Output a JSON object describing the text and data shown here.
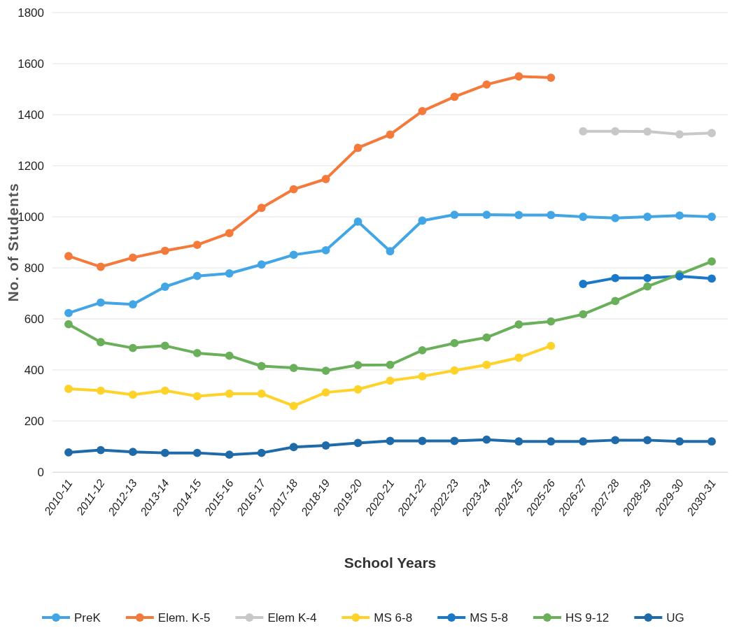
{
  "chart_data": {
    "type": "line",
    "xlabel": "School Years",
    "ylabel": "No. of Students",
    "categories": [
      "2010-11",
      "2011-12",
      "2012-13",
      "2013-14",
      "2014-15",
      "2015-16",
      "2016-17",
      "2017-18",
      "2018-19",
      "2019-20",
      "2020-21",
      "2021-22",
      "2022-23",
      "2023-24",
      "2024-25",
      "2025-26",
      "2026-27",
      "2027-28",
      "2028-29",
      "2029-30",
      "2030-31"
    ],
    "ylim": [
      0,
      1800
    ],
    "yticks": [
      0,
      200,
      400,
      600,
      800,
      1000,
      1200,
      1400,
      1600,
      1800
    ],
    "grid": "y",
    "legend": "bottom",
    "marker": "circle",
    "line_style": "solid",
    "series": [
      {
        "name": "PreK",
        "color": "#41a5e6",
        "values": [
          623,
          664,
          657,
          726,
          768,
          778,
          813,
          851,
          869,
          981,
          865,
          985,
          1008,
          1008,
          1007,
          1007,
          1000,
          995,
          1000,
          1005,
          1000
        ]
      },
      {
        "name": "Elem. K-5",
        "color": "#f47a3c",
        "values": [
          846,
          804,
          840,
          867,
          890,
          936,
          1035,
          1108,
          1148,
          1270,
          1322,
          1414,
          1470,
          1518,
          1550,
          1545,
          null,
          null,
          null,
          null,
          null
        ]
      },
      {
        "name": "Elem K-4",
        "color": "#c8c8c8",
        "values": [
          null,
          null,
          null,
          null,
          null,
          null,
          null,
          null,
          null,
          null,
          null,
          null,
          null,
          null,
          null,
          null,
          1335,
          1335,
          1334,
          1323,
          1328
        ]
      },
      {
        "name": "MS 6-8",
        "color": "#ffd22a",
        "values": [
          326,
          319,
          303,
          319,
          297,
          307,
          307,
          259,
          312,
          324,
          358,
          375,
          398,
          420,
          448,
          494,
          null,
          null,
          null,
          null,
          null
        ]
      },
      {
        "name": "MS 5-8",
        "color": "#1a78c8",
        "values": [
          null,
          null,
          null,
          null,
          null,
          null,
          null,
          null,
          null,
          null,
          null,
          null,
          null,
          null,
          null,
          null,
          737,
          760,
          760,
          767,
          758
        ]
      },
      {
        "name": "HS 9-12",
        "color": "#6aaf5a",
        "values": [
          579,
          509,
          486,
          495,
          466,
          456,
          415,
          408,
          397,
          419,
          420,
          477,
          505,
          527,
          578,
          590,
          618,
          670,
          727,
          775,
          825
        ]
      },
      {
        "name": "UG",
        "color": "#1f6aa8",
        "values": [
          77,
          86,
          79,
          75,
          75,
          68,
          75,
          98,
          104,
          114,
          122,
          122,
          122,
          127,
          120,
          120,
          120,
          125,
          125,
          120,
          120
        ]
      }
    ]
  }
}
